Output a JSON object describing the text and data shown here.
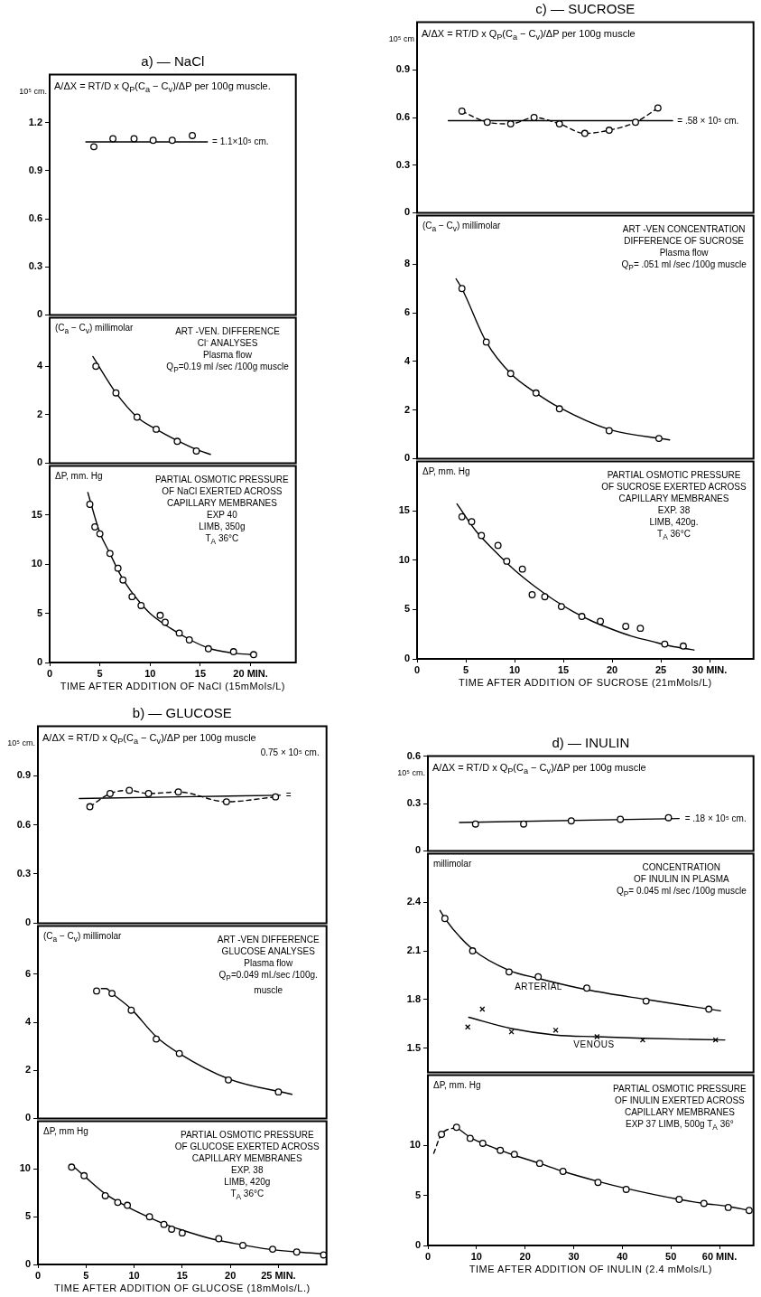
{
  "chart_data": [
    {
      "type": "scatter",
      "title": "a) — NaCl",
      "subtitle": "A/ΔX = RT/D x Q$_{P}$(C$_{a}$ − C$_{v}$)/ΔP per 100g muscle.",
      "ylabel": "10⁵ cm.",
      "xlim": [
        0,
        24.5
      ],
      "ylim": [
        0,
        1.5
      ],
      "yticks": [
        0,
        0.3,
        0.6,
        0.9,
        1.2
      ],
      "tick_labels": "y",
      "annotations": [
        {
          "text": "= 1.1×10⁵ cm.",
          "x": 16,
          "y": 1.08
        }
      ],
      "series": [
        {
          "type": "scatter",
          "color": "#000000",
          "marker": "circle",
          "x": [
            4.4,
            6.3,
            8.4,
            10.3,
            12.2,
            14.2
          ],
          "values": [
            1.05,
            1.1,
            1.1,
            1.09,
            1.09,
            1.12
          ]
        },
        {
          "type": "line",
          "color": "#000000",
          "marker": "none",
          "line_style": "solid",
          "x": [
            3.6,
            15.7
          ],
          "values": [
            1.08,
            1.08
          ]
        }
      ]
    },
    {
      "type": "scatter",
      "ylabel": "(C$_{a}$ − C$_{v}$) millimolar",
      "xlim": [
        0,
        24.5
      ],
      "ylim": [
        0,
        6
      ],
      "yticks": [
        0,
        2,
        4
      ],
      "tick_labels": "y",
      "annotations": [
        "ART -VEN. DIFFERENCE",
        "Cl⁻ ANALYSES",
        "Plasma flow",
        "Q$_{P}$=0.19 ml /sec /100g muscle"
      ],
      "series": [
        {
          "type": "scatter",
          "color": "#000000",
          "marker": "circle",
          "x": [
            4.6,
            6.6,
            8.7,
            10.6,
            12.7,
            14.6
          ],
          "values": [
            4.0,
            2.9,
            1.9,
            1.4,
            0.9,
            0.5
          ]
        },
        {
          "type": "line",
          "color": "#000000",
          "marker": "none",
          "line_style": "solid",
          "x": [
            4.3,
            6.6,
            8.7,
            10.6,
            12.7,
            14.6,
            16.0
          ],
          "values": [
            4.4,
            2.9,
            1.9,
            1.4,
            0.93,
            0.56,
            0.36
          ]
        }
      ]
    },
    {
      "type": "scatter",
      "ylabel": "ΔP, mm. Hg",
      "xlabel": "TIME AFTER ADDITION OF NaCl (15mMols/L)",
      "xlim": [
        0,
        24.5
      ],
      "xticks": [
        0,
        5,
        10,
        15,
        {
          "value": 20,
          "label": "20 MIN."
        }
      ],
      "ylim": [
        0,
        20
      ],
      "yticks": [
        0,
        5,
        10,
        15
      ],
      "annotations": [
        "PARTIAL OSMOTIC PRESSURE",
        "OF NaCl EXERTED ACROSS",
        "CAPILLARY MEMBRANES",
        "EXP 40",
        "LIMB, 350g",
        "T$_{A}$ 36°C"
      ],
      "series": [
        {
          "type": "scatter",
          "color": "#000000",
          "marker": "circle",
          "x": [
            4.0,
            4.5,
            5.0,
            6.0,
            6.8,
            7.3,
            8.2,
            9.1,
            11.0,
            11.5,
            12.9,
            13.9,
            15.8,
            18.3,
            20.3
          ],
          "values": [
            16.1,
            13.8,
            13.1,
            11.1,
            9.6,
            8.4,
            6.7,
            5.8,
            4.8,
            4.1,
            3.0,
            2.3,
            1.4,
            1.1,
            0.8
          ]
        },
        {
          "type": "line",
          "color": "#000000",
          "marker": "none",
          "line_style": "solid",
          "x": [
            3.8,
            5,
            6,
            7,
            8,
            9,
            10,
            12,
            14,
            16,
            18,
            20
          ],
          "values": [
            17.3,
            13.2,
            11.1,
            9.0,
            7.4,
            6.1,
            5.0,
            3.5,
            2.3,
            1.4,
            1.0,
            0.8
          ]
        }
      ]
    },
    {
      "type": "scatter",
      "title": "c) — SUCROSE",
      "subtitle": "A/ΔX = RT/D x Q$_{P}$(C$_{a}$ − C$_{v}$)/ΔP per 100g muscle",
      "ylabel": "10⁵ cm",
      "xlim": [
        0,
        34.5
      ],
      "ylim": [
        0,
        1.2
      ],
      "yticks": [
        0,
        0.3,
        0.6,
        0.9
      ],
      "tick_labels": "y",
      "annotations": [
        {
          "text": "= .58 × 10⁵ cm.",
          "x": 26.5,
          "y": 0.58
        }
      ],
      "series": [
        {
          "type": "line",
          "color": "#000000",
          "marker": "circle",
          "line_style": "dashed",
          "x": [
            4.6,
            7.2,
            9.6,
            12.0,
            14.6,
            17.2,
            19.7,
            22.4,
            24.7
          ],
          "values": [
            0.64,
            0.57,
            0.56,
            0.6,
            0.56,
            0.5,
            0.52,
            0.57,
            0.66
          ]
        },
        {
          "type": "line",
          "color": "#000000",
          "marker": "none",
          "line_style": "solid",
          "x": [
            3.2,
            26.2
          ],
          "values": [
            0.58,
            0.58
          ]
        }
      ]
    },
    {
      "type": "scatter",
      "ylabel": "(C$_{a}$ − C$_{v}$) millimolar",
      "xlim": [
        0,
        34.5
      ],
      "ylim": [
        0,
        10
      ],
      "yticks": [
        0,
        2,
        4,
        6,
        8
      ],
      "tick_labels": "y",
      "annotations": [
        "ART -VEN CONCENTRATION",
        "DIFFERENCE OF SUCROSE",
        "Plasma flow",
        "Q$_{P}$= .051 ml /sec /100g muscle"
      ],
      "series": [
        {
          "type": "scatter",
          "color": "#000000",
          "marker": "circle",
          "x": [
            4.6,
            7.1,
            9.6,
            12.2,
            14.6,
            19.7,
            24.8
          ],
          "values": [
            7.0,
            4.8,
            3.5,
            2.7,
            2.05,
            1.15,
            0.83
          ]
        },
        {
          "type": "line",
          "color": "#000000",
          "marker": "none",
          "line_style": "solid",
          "x": [
            4.0,
            4.6,
            7.1,
            9.6,
            12.2,
            14.6,
            19.7,
            25.9
          ],
          "values": [
            7.4,
            7.0,
            4.8,
            3.5,
            2.7,
            2.1,
            1.2,
            0.77
          ]
        }
      ]
    },
    {
      "type": "scatter",
      "ylabel": "ΔP, mm. Hg",
      "xlabel": "TIME AFTER ADDITION OF SUCROSE (21mMols/L)",
      "xlim": [
        0,
        34.5
      ],
      "xticks": [
        0,
        5,
        10,
        15,
        20,
        25,
        {
          "value": 30,
          "label": "30 MIN."
        }
      ],
      "ylim": [
        0,
        20
      ],
      "yticks": [
        0,
        5,
        10,
        15
      ],
      "annotations": [
        "PARTIAL OSMOTIC PRESSURE",
        "OF SUCROSE EXERTED ACROSS",
        "CAPILLARY MEMBRANES",
        "EXP. 38",
        "LIMB, 420g.",
        "T$_{A}$ 36°C"
      ],
      "series": [
        {
          "type": "scatter",
          "color": "#000000",
          "marker": "circle",
          "x": [
            4.6,
            5.6,
            6.6,
            8.3,
            9.2,
            10.8,
            11.8,
            13.1,
            14.8,
            16.9,
            18.8,
            21.4,
            22.9,
            25.4,
            27.3
          ],
          "values": [
            14.4,
            13.9,
            12.5,
            11.5,
            9.9,
            9.1,
            6.5,
            6.3,
            5.3,
            4.3,
            3.8,
            3.3,
            3.1,
            1.5,
            1.3
          ]
        },
        {
          "type": "line",
          "color": "#000000",
          "marker": "none",
          "line_style": "solid",
          "x": [
            4.1,
            6,
            8,
            10,
            12,
            14,
            16,
            18,
            20,
            22,
            24,
            26,
            28.4
          ],
          "values": [
            15.7,
            13.0,
            10.9,
            9.0,
            7.4,
            6.0,
            4.8,
            3.8,
            3.0,
            2.3,
            1.8,
            1.3,
            0.9
          ]
        }
      ]
    },
    {
      "type": "scatter",
      "title": "b) — GLUCOSE",
      "subtitle": "A/ΔX = RT/D x Q$_{P}$(C$_{a}$ − C$_{v}$)/ΔP per 100g muscle",
      "ylabel": "10⁵ cm.",
      "xlim": [
        0,
        30
      ],
      "ylim": [
        0,
        1.2
      ],
      "yticks": [
        0,
        0.3,
        0.6,
        0.9
      ],
      "tick_labels": "y",
      "annotations": [
        {
          "text": "=",
          "x": 25.6,
          "y": 0.78
        },
        "0.75 × 10⁵ cm."
      ],
      "series": [
        {
          "type": "line",
          "color": "#000000",
          "marker": "circle",
          "line_style": "dashed",
          "x": [
            5.4,
            7.5,
            9.5,
            11.5,
            14.6,
            19.6,
            24.7
          ],
          "values": [
            0.71,
            0.79,
            0.81,
            0.79,
            0.8,
            0.74,
            0.77
          ]
        },
        {
          "type": "line",
          "color": "#000000",
          "marker": "none",
          "line_style": "solid",
          "x": [
            4.3,
            25.2
          ],
          "values": [
            0.76,
            0.78
          ]
        }
      ]
    },
    {
      "type": "scatter",
      "ylabel": "(C$_{a}$ − C$_{v}$) millimolar",
      "xlim": [
        0,
        30
      ],
      "ylim": [
        0,
        8
      ],
      "yticks": [
        0,
        2,
        4,
        6
      ],
      "tick_labels": "y",
      "annotations": [
        "ART -VEN DIFFERENCE",
        "GLUCOSE ANALYSES",
        "Plasma flow",
        "Q$_{P}$=0.049 ml./sec /100g.",
        "muscle"
      ],
      "series": [
        {
          "type": "scatter",
          "color": "#000000",
          "marker": "circle",
          "x": [
            6.1,
            7.7,
            9.7,
            12.3,
            14.7,
            19.8,
            25.0
          ],
          "values": [
            5.3,
            5.2,
            4.5,
            3.3,
            2.7,
            1.6,
            1.1
          ]
        },
        {
          "type": "line",
          "color": "#000000",
          "marker": "none",
          "line_style": "solid",
          "x": [
            6.6,
            7.1,
            7.7,
            9.7,
            12.3,
            14.7,
            19.8,
            26.4
          ],
          "values": [
            5.4,
            5.4,
            5.2,
            4.55,
            3.4,
            2.7,
            1.65,
            1.0
          ]
        }
      ]
    },
    {
      "type": "scatter",
      "ylabel": "ΔP, mm Hg",
      "xlabel": "TIME AFTER ADDITION OF GLUCOSE (18mMols/L.)",
      "xlim": [
        0,
        30
      ],
      "xticks": [
        0,
        5,
        10,
        15,
        20,
        {
          "value": 25,
          "label": "25 MIN."
        }
      ],
      "ylim": [
        0,
        15
      ],
      "yticks": [
        0,
        5,
        10
      ],
      "annotations": [
        "PARTIAL OSMOTIC PRESSURE",
        "OF GLUCOSE EXERTED ACROSS",
        "CAPILLARY MEMBRANES",
        "EXP. 38",
        "LIMB, 420g",
        "T$_{A}$ 36°C"
      ],
      "series": [
        {
          "type": "scatter",
          "color": "#000000",
          "marker": "circle",
          "x": [
            3.5,
            4.8,
            7.0,
            8.3,
            9.3,
            11.6,
            13.1,
            13.9,
            15.0,
            18.8,
            21.3,
            24.4,
            26.9,
            29.7
          ],
          "values": [
            10.2,
            9.3,
            7.2,
            6.5,
            6.2,
            5.0,
            4.2,
            3.7,
            3.3,
            2.7,
            2.0,
            1.6,
            1.3,
            1.0
          ]
        },
        {
          "type": "line",
          "color": "#000000",
          "marker": "none",
          "line_style": "solid",
          "x": [
            3.55,
            5,
            7,
            9,
            11,
            13,
            15,
            18,
            21,
            24,
            27,
            30
          ],
          "values": [
            10.4,
            9.1,
            7.4,
            6.2,
            5.2,
            4.3,
            3.6,
            2.7,
            2.1,
            1.6,
            1.3,
            1.1
          ]
        }
      ]
    },
    {
      "type": "scatter",
      "title": "d) — INULIN",
      "subtitle": "A/ΔX = RT/D x Q$_{P}$(C$_{a}$ − C$_{v}$)/ΔP per 100g muscle",
      "ylabel": "10⁵ cm.",
      "xlim": [
        0,
        67
      ],
      "ylim": [
        0,
        0.6
      ],
      "yticks": [
        0,
        0.3,
        0.6
      ],
      "tick_labels": "y",
      "annotations": [
        {
          "text": "= .18 × 10⁵ cm.",
          "x": 52.5,
          "y": 0.2
        }
      ],
      "series": [
        {
          "type": "scatter",
          "color": "#000000",
          "marker": "circle",
          "x": [
            9.8,
            19.7,
            29.5,
            39.6,
            49.5
          ],
          "values": [
            0.17,
            0.17,
            0.19,
            0.2,
            0.21
          ]
        },
        {
          "type": "line",
          "color": "#000000",
          "marker": "none",
          "line_style": "solid",
          "x": [
            6.5,
            51.7
          ],
          "values": [
            0.18,
            0.205
          ]
        }
      ]
    },
    {
      "type": "scatter",
      "ylabel": "millimolar",
      "xlim": [
        0,
        67
      ],
      "ylim": [
        1.35,
        2.7
      ],
      "yticks": [
        1.5,
        1.8,
        2.1,
        2.4
      ],
      "tick_labels": "y",
      "annotations": [
        "CONCENTRATION",
        "OF INULIN IN PLASMA",
        "Q$_{P}$= 0.045 ml /sec /100g muscle"
      ],
      "series": [
        {
          "type": "scatter",
          "color": "#000000",
          "marker": "circle",
          "x": [
            3.5,
            9.2,
            16.7,
            22.7,
            32.7,
            44.9,
            57.8
          ],
          "values": [
            2.3,
            2.1,
            1.97,
            1.94,
            1.87,
            1.79,
            1.74
          ]
        },
        {
          "type": "scatter",
          "color": "#000000",
          "marker": "cross",
          "x": [
            8.2,
            11.2,
            17.2,
            26.3,
            34.8,
            44.2,
            59.2
          ],
          "values": [
            1.63,
            1.74,
            1.6,
            1.61,
            1.57,
            1.55,
            1.55
          ]
        },
        {
          "type": "line",
          "name": "ARTERIAL",
          "color": "#000000",
          "marker": "none",
          "line_style": "solid",
          "x": [
            2.5,
            3.5,
            9.2,
            16.7,
            22.7,
            32.7,
            44.9,
            60.2
          ],
          "values": [
            2.35,
            2.3,
            2.11,
            1.98,
            1.93,
            1.86,
            1.8,
            1.73
          ]
        },
        {
          "type": "line",
          "name": "VENOUS",
          "color": "#000000",
          "marker": "none",
          "line_style": "solid",
          "x": [
            8.4,
            17.2,
            26.3,
            34.8,
            44.2,
            61.1
          ],
          "values": [
            1.69,
            1.62,
            1.58,
            1.57,
            1.56,
            1.55
          ]
        }
      ]
    },
    {
      "type": "scatter",
      "ylabel": "ΔP, mm. Hg",
      "xlabel": "TIME AFTER ADDITION OF INULIN (2.4 mMols/L)",
      "xlim": [
        0,
        67
      ],
      "xticks": [
        0,
        10,
        20,
        30,
        40,
        50,
        {
          "value": 60,
          "label": "60 MIN."
        }
      ],
      "ylim": [
        0,
        17
      ],
      "yticks": [
        0,
        5,
        10
      ],
      "annotations": [
        "PARTIAL OSMOTIC PRESSURE",
        "OF INULIN EXERTED ACROSS",
        "CAPILLARY MEMBRANES",
        "EXP 37   LIMB, 500g   T$_{A}$ 36°"
      ],
      "series": [
        {
          "type": "scatter",
          "color": "#000000",
          "marker": "circle",
          "x": [
            2.8,
            5.9,
            8.7,
            11.3,
            14.9,
            17.8,
            23.0,
            27.8,
            35.0,
            40.8,
            51.7,
            56.8,
            61.8,
            66.1
          ],
          "values": [
            11.1,
            11.8,
            10.7,
            10.2,
            9.5,
            9.1,
            8.2,
            7.4,
            6.3,
            5.6,
            4.6,
            4.2,
            3.8,
            3.5
          ]
        },
        {
          "type": "line",
          "color": "#000000",
          "marker": "none",
          "line_style": "dashed",
          "x": [
            1.2,
            2.8,
            5.9
          ],
          "values": [
            9.2,
            11.1,
            11.8
          ]
        },
        {
          "type": "line",
          "color": "#000000",
          "marker": "none",
          "line_style": "solid",
          "x": [
            5.9,
            8.7,
            11.3,
            14.9,
            17.8,
            23.0,
            27.8,
            35.0,
            40.8,
            51.7,
            56.8,
            61.8,
            66.1
          ],
          "values": [
            11.8,
            10.8,
            10.2,
            9.5,
            9.0,
            8.2,
            7.4,
            6.4,
            5.7,
            4.6,
            4.2,
            3.9,
            3.5
          ]
        }
      ]
    }
  ]
}
